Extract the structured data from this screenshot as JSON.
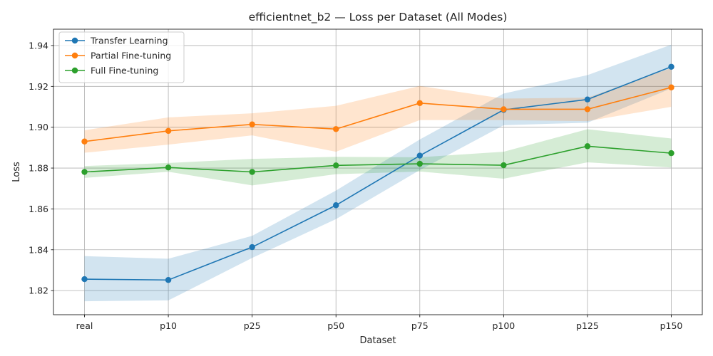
{
  "chart_data": {
    "type": "line",
    "title": "efficientnet_b2 — Loss per Dataset (All Modes)",
    "xlabel": "Dataset",
    "ylabel": "Loss",
    "categories": [
      "real",
      "p10",
      "p25",
      "p50",
      "p75",
      "p100",
      "p125",
      "p150"
    ],
    "ylim": [
      1.8082,
      1.948
    ],
    "yticks": [
      1.82,
      1.84,
      1.86,
      1.88,
      1.9,
      1.92,
      1.94
    ],
    "ytick_labels": [
      "1.82",
      "1.84",
      "1.86",
      "1.88",
      "1.90",
      "1.92",
      "1.94"
    ],
    "grid": true,
    "legend_position": "top-left",
    "series": [
      {
        "name": "Transfer Learning",
        "color": "#1f77b4",
        "values": [
          1.8256,
          1.8252,
          1.8413,
          1.8618,
          1.8861,
          1.9085,
          1.9136,
          1.9296
        ],
        "lower": [
          1.8148,
          1.8152,
          1.836,
          1.855,
          1.879,
          1.901,
          1.9022,
          1.919
        ],
        "upper": [
          1.8369,
          1.8356,
          1.8468,
          1.869,
          1.894,
          1.9165,
          1.9255,
          1.9404
        ]
      },
      {
        "name": "Partial Fine-tuning",
        "color": "#ff7f0e",
        "values": [
          1.893,
          1.8982,
          1.9014,
          1.8991,
          1.9118,
          1.9088,
          1.9088,
          1.9195
        ],
        "lower": [
          1.8875,
          1.8915,
          1.896,
          1.888,
          1.9035,
          1.9035,
          1.903,
          1.91
        ],
        "upper": [
          1.8985,
          1.9048,
          1.9068,
          1.9105,
          1.9202,
          1.914,
          1.9145,
          1.929
        ]
      },
      {
        "name": "Full Fine-tuning",
        "color": "#2ca02c",
        "values": [
          1.8781,
          1.8803,
          1.8781,
          1.8813,
          1.8821,
          1.8814,
          1.8907,
          1.8873
        ],
        "lower": [
          1.8752,
          1.8782,
          1.8715,
          1.877,
          1.8783,
          1.8748,
          1.8828,
          1.8803
        ],
        "upper": [
          1.881,
          1.8825,
          1.8845,
          1.8855,
          1.8853,
          1.888,
          1.899,
          1.8945
        ]
      }
    ]
  }
}
